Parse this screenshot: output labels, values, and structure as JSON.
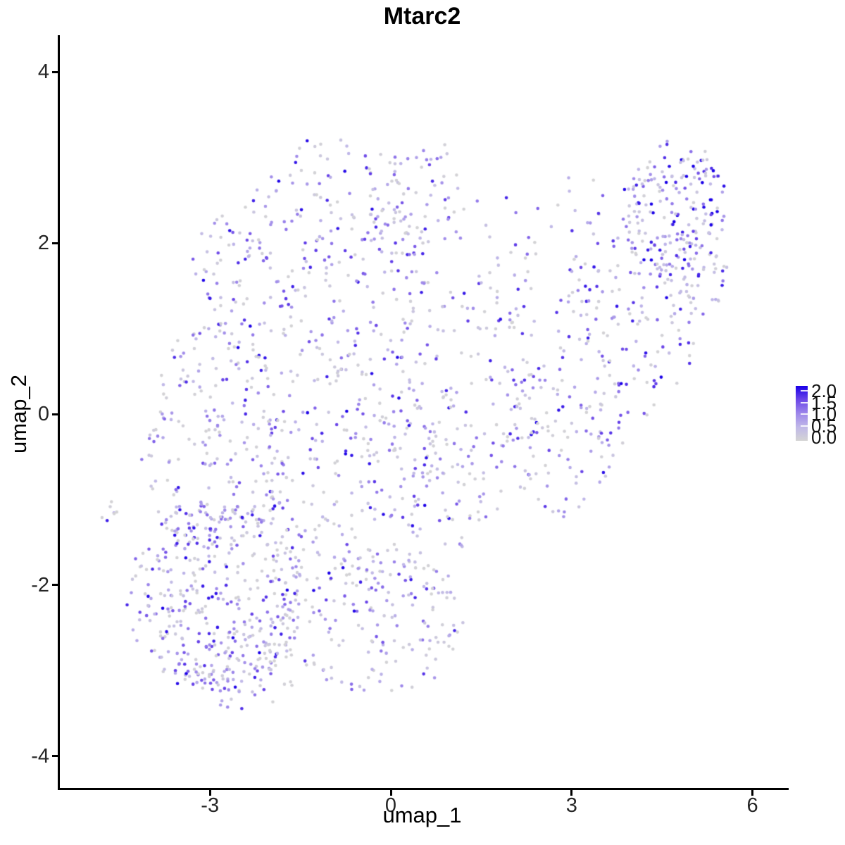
{
  "title": "Mtarc2",
  "axes": {
    "x": {
      "label": "umap_1",
      "ticks": [
        -3,
        0,
        3,
        6
      ]
    },
    "y": {
      "label": "umap_2",
      "ticks": [
        4,
        2,
        0,
        -2,
        -4
      ]
    }
  },
  "legend": {
    "labels": [
      "2.0",
      "1.5",
      "1.0",
      "0.5",
      "0.0"
    ],
    "values": [
      2.0,
      1.5,
      1.0,
      0.5,
      0.0
    ]
  },
  "chart_data": {
    "type": "scatter",
    "title": "Mtarc2",
    "xlabel": "umap_1",
    "ylabel": "umap_2",
    "xlim": [
      -5.5,
      6.6
    ],
    "ylim": [
      -4.4,
      4.4
    ],
    "grid": false,
    "legend_position": "right",
    "n_points_estimate": 2075,
    "color_scale": {
      "label_min": 0.0,
      "label_max": 2.0,
      "from_color": "#d4d4d4",
      "to_color": "#1a00e8",
      "stops": [
        [
          0.0,
          "#d4d4d4"
        ],
        [
          0.25,
          "#c0b8e8"
        ],
        [
          0.5,
          "#9d87ea"
        ],
        [
          0.75,
          "#6b46e8"
        ],
        [
          1.0,
          "#1a00e8"
        ]
      ]
    },
    "generator": {
      "seed": 7,
      "default_zero_fraction": 0.22,
      "clusters": [
        {
          "name": "far-left-clump",
          "kind": "ellipse",
          "cx": -4.68,
          "cy": -1.18,
          "rx": 0.14,
          "ry": 0.2,
          "n": 7,
          "free": true,
          "zero_fraction": 0.45,
          "bias": 1.0
        },
        {
          "name": "lower-left-core",
          "kind": "ellipse",
          "cx": -2.95,
          "cy": -2.15,
          "rx": 1.5,
          "ry": 1.15,
          "n": 360,
          "free": false,
          "zero_fraction": 0.22,
          "bias": 1.0
        },
        {
          "name": "bottom-tip",
          "kind": "ellipse",
          "cx": -2.45,
          "cy": -3.0,
          "rx": 0.85,
          "ry": 0.5,
          "n": 70,
          "free": false,
          "zero_fraction": 0.25,
          "bias": 0.9
        },
        {
          "name": "left-mid",
          "kind": "ellipse",
          "cx": -2.95,
          "cy": -0.25,
          "rx": 1.3,
          "ry": 1.35,
          "n": 210,
          "free": false,
          "zero_fraction": 0.24,
          "bias": 1.0
        },
        {
          "name": "top-left-mass",
          "kind": "ellipse",
          "cx": -1.35,
          "cy": 1.85,
          "rx": 2.05,
          "ry": 1.4,
          "n": 280,
          "free": false,
          "zero_fraction": 0.2,
          "bias": 1.0
        },
        {
          "name": "top-mid",
          "kind": "ellipse",
          "cx": 0.35,
          "cy": 2.5,
          "rx": 0.9,
          "ry": 0.75,
          "n": 70,
          "free": false,
          "zero_fraction": 0.2,
          "bias": 1.0
        },
        {
          "name": "central",
          "kind": "ellipse",
          "cx": -0.45,
          "cy": -0.85,
          "rx": 2.0,
          "ry": 1.6,
          "n": 290,
          "free": false,
          "zero_fraction": 0.24,
          "bias": 1.0
        },
        {
          "name": "center-right",
          "kind": "ellipse",
          "cx": 1.1,
          "cy": 0.2,
          "rx": 1.35,
          "ry": 1.5,
          "n": 140,
          "free": false,
          "zero_fraction": 0.24,
          "bias": 1.0
        },
        {
          "name": "bottom-center",
          "kind": "ellipse",
          "cx": -0.3,
          "cy": -2.45,
          "rx": 1.5,
          "ry": 0.85,
          "n": 130,
          "free": false,
          "zero_fraction": 0.24,
          "bias": 0.95
        },
        {
          "name": "arm-low",
          "kind": "ellipse",
          "cx": 2.95,
          "cy": -0.3,
          "rx": 1.05,
          "ry": 0.95,
          "n": 110,
          "free": false,
          "zero_fraction": 0.25,
          "bias": 1.0
        },
        {
          "name": "arm-mid",
          "kind": "ellipse",
          "cx": 3.85,
          "cy": 1.05,
          "rx": 1.2,
          "ry": 1.1,
          "n": 140,
          "free": false,
          "zero_fraction": 0.24,
          "bias": 1.0
        },
        {
          "name": "arm-tip",
          "kind": "ellipse",
          "cx": 4.7,
          "cy": 2.35,
          "rx": 0.9,
          "ry": 0.85,
          "n": 175,
          "free": false,
          "zero_fraction": 0.12,
          "bias": 1.15
        },
        {
          "name": "right-edge",
          "kind": "ellipse",
          "cx": 5.0,
          "cy": 1.7,
          "rx": 0.55,
          "ry": 0.95,
          "n": 55,
          "free": false,
          "zero_fraction": 0.18,
          "bias": 1.05
        },
        {
          "name": "top-bridge",
          "kind": "box",
          "cx": 2.45,
          "cy": 2.5,
          "rx": 1.1,
          "ry": 0.4,
          "n": 18,
          "free": true,
          "zero_fraction": 0.25,
          "bias": 1.0
        },
        {
          "name": "neck",
          "kind": "box",
          "cx": 1.95,
          "cy": 1.5,
          "rx": 0.55,
          "ry": 0.6,
          "n": 30,
          "free": true,
          "zero_fraction": 0.25,
          "bias": 1.0
        }
      ]
    }
  }
}
